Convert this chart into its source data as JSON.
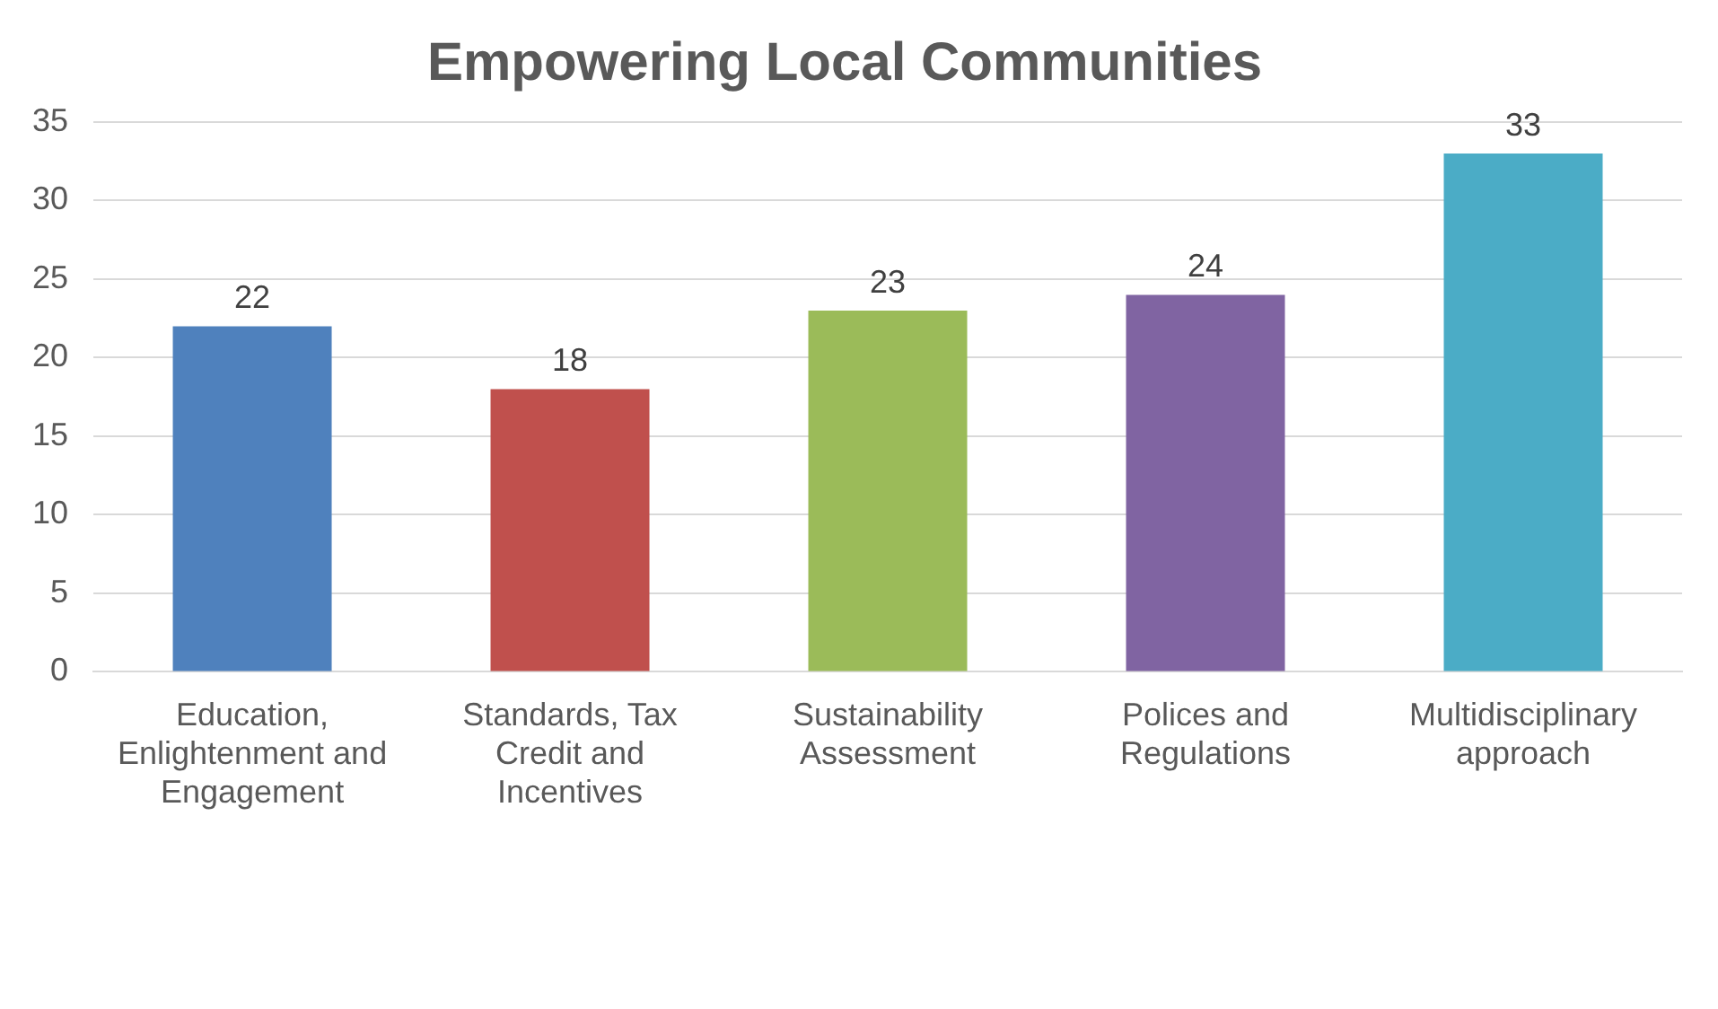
{
  "chart_data": {
    "type": "bar",
    "title": "Empowering Local Communities",
    "categories": [
      "Education, Enlightenment and Engagement",
      "Standards, Tax Credit and Incentives",
      "Sustainability Assessment",
      "Polices and Regulations",
      "Multidisciplinary approach"
    ],
    "values": [
      22,
      18,
      23,
      24,
      33
    ],
    "colors": [
      "#4f81bd",
      "#c0504d",
      "#9bbb59",
      "#8064a2",
      "#4bacc6"
    ],
    "ylim": [
      0,
      35
    ],
    "yticks": [
      0,
      5,
      10,
      15,
      20,
      25,
      30,
      35
    ],
    "grid": "y",
    "data_labels": true,
    "legend": false
  }
}
